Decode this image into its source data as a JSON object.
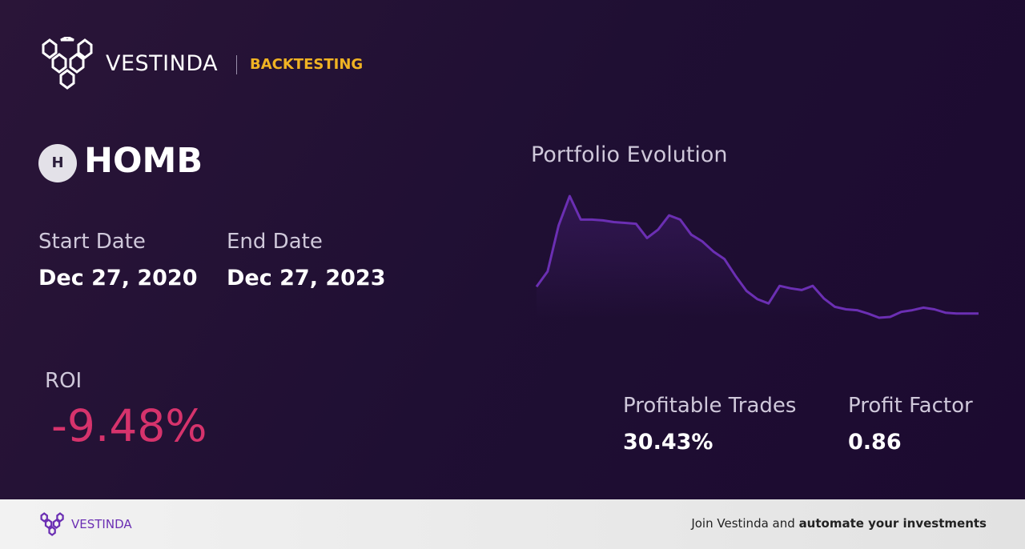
{
  "header": {
    "brand": "VESTINDA",
    "tag": "BACKTESTING"
  },
  "asset": {
    "icon": "H",
    "ticker": "HOMB"
  },
  "dates": {
    "start_label": "Start Date",
    "start_value": "Dec 27, 2020",
    "end_label": "End Date",
    "end_value": "Dec 27, 2023"
  },
  "roi": {
    "label": "ROI",
    "value": "-9.48%"
  },
  "stats": {
    "profitable_label": "Profitable Trades",
    "profitable_value": "30.43%",
    "factor_label": "Profit Factor",
    "factor_value": "0.86"
  },
  "chart_data": {
    "type": "line",
    "title": "Portfolio Evolution",
    "color": "#6b2fb3",
    "values": [
      42,
      60,
      115,
      150,
      122,
      122,
      121,
      119,
      118,
      117,
      100,
      110,
      127,
      122,
      104,
      96,
      84,
      75,
      55,
      37,
      27,
      22,
      43,
      40,
      38,
      43,
      28,
      18,
      15,
      14,
      10,
      5,
      6,
      12,
      14,
      17,
      15,
      11,
      10,
      10,
      10
    ]
  },
  "footer": {
    "brand": "VESTINDA",
    "cta_plain": "Join Vestinda and",
    "cta_bold": "automate your investments"
  }
}
